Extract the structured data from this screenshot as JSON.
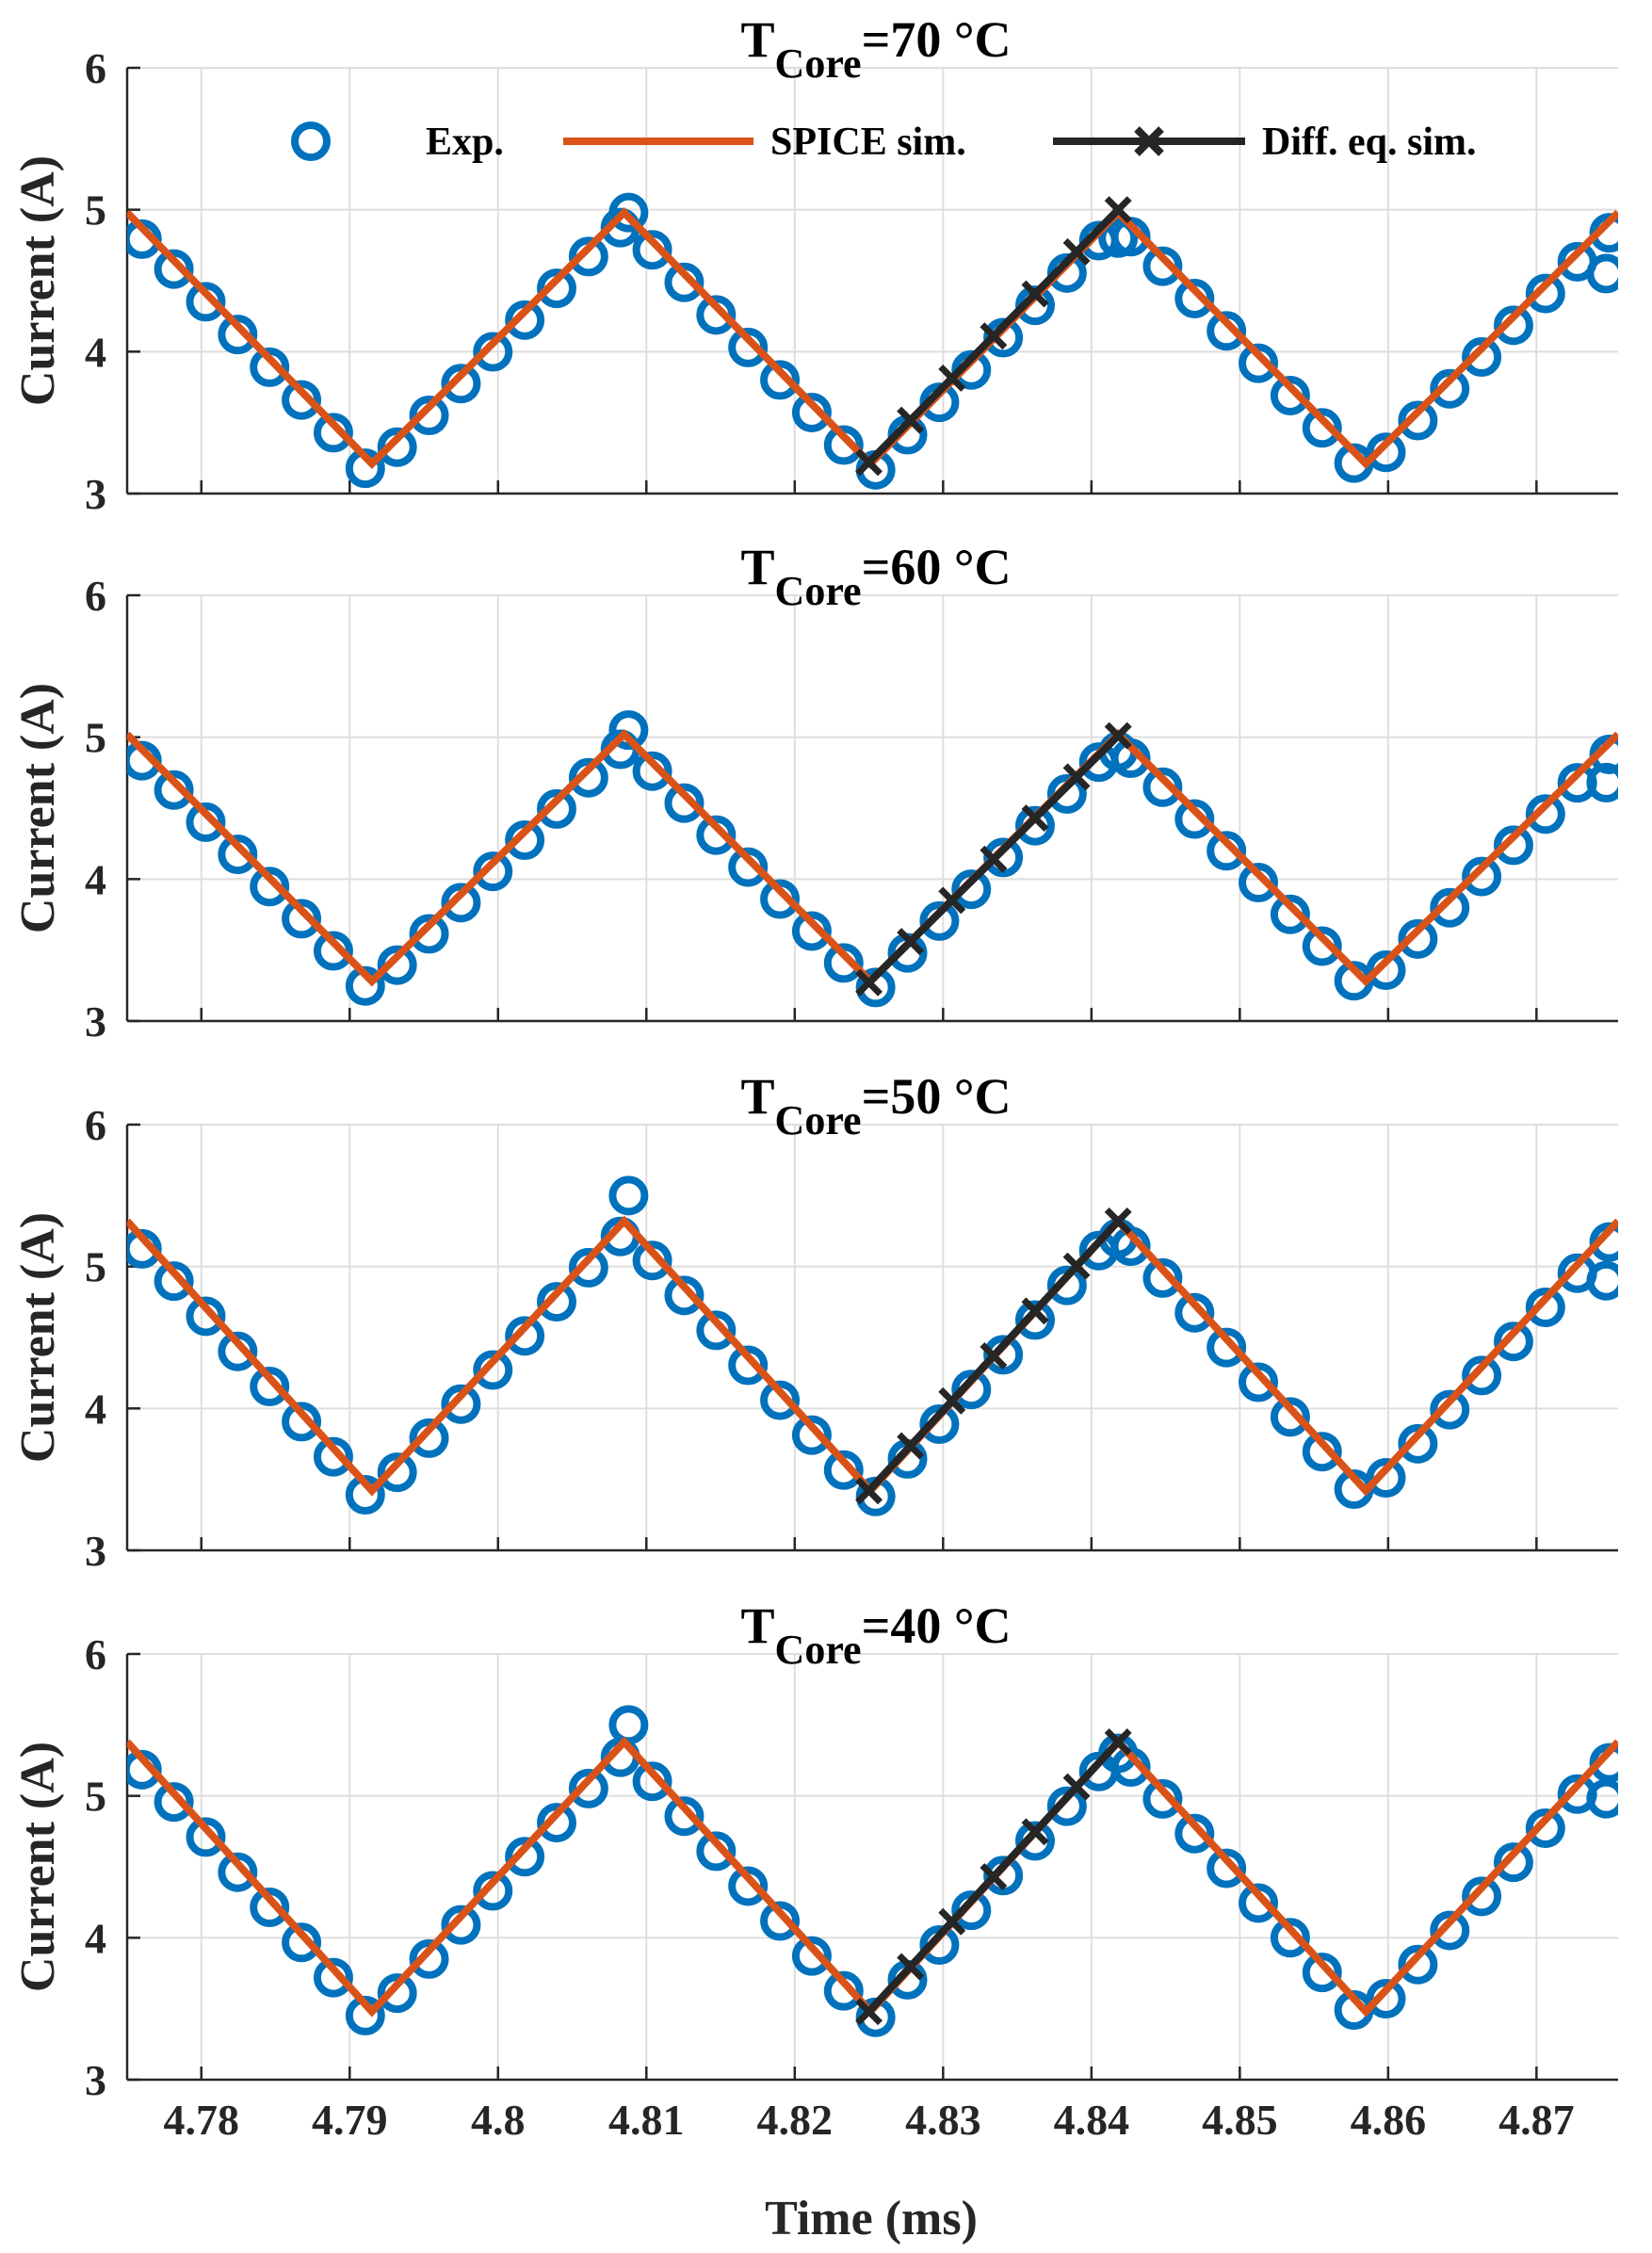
{
  "chart_data": {
    "type": "line",
    "xlabel": "Time (ms)",
    "ylabel": "Current (A)",
    "xlim": [
      4.775,
      4.8755
    ],
    "ylim": [
      3,
      6
    ],
    "xticks": [
      4.78,
      4.79,
      4.8,
      4.81,
      4.82,
      4.83,
      4.84,
      4.85,
      4.86,
      4.87
    ],
    "xtick_labels": [
      "4.78",
      "4.79",
      "4.8",
      "4.81",
      "4.82",
      "4.83",
      "4.84",
      "4.85",
      "4.86",
      "4.87"
    ],
    "yticks": [
      3,
      4,
      5,
      6
    ],
    "ytick_labels": [
      "3",
      "4",
      "5",
      "6"
    ],
    "grid": true,
    "legend": {
      "placement": "top",
      "entries": [
        {
          "label": "Exp.",
          "marker": "circle",
          "color": "#0072BD"
        },
        {
          "label": "SPICE sim.",
          "marker": "line",
          "color": "#D95319"
        },
        {
          "label": "Diff. eq. sim.",
          "marker": "x-line",
          "color": "#262626"
        }
      ]
    },
    "colors": {
      "exp": "#0072BD",
      "spice": "#D95319",
      "diff": "#262626",
      "grid": "#dedede",
      "axis": "#262626"
    },
    "panels": [
      {
        "title_main": "T",
        "title_sub": "Core",
        "title_suffix": "=70 °C",
        "spice": {
          "x": [
            4.775,
            4.7915,
            4.8085,
            4.8251,
            4.8418,
            4.8585,
            4.8755
          ],
          "y": [
            4.98,
            3.21,
            4.98,
            3.21,
            4.98,
            3.21,
            4.98
          ]
        },
        "diff": {
          "x": [
            4.825,
            4.8418
          ],
          "y": [
            3.22,
            5.0
          ]
        },
        "exp_peak": {
          "x": [
            4.8088,
            4.8418
          ],
          "y": [
            4.98,
            4.8
          ]
        },
        "exp_end": {
          "x": 4.8747,
          "y": 4.55
        }
      },
      {
        "title_main": "T",
        "title_sub": "Core",
        "title_suffix": "=60 °C",
        "spice": {
          "x": [
            4.775,
            4.7915,
            4.8085,
            4.8251,
            4.8418,
            4.8585,
            4.8755
          ],
          "y": [
            5.02,
            3.28,
            5.02,
            3.28,
            5.02,
            3.28,
            5.02
          ]
        },
        "diff": {
          "x": [
            4.825,
            4.8418
          ],
          "y": [
            3.27,
            5.01
          ]
        },
        "exp_peak": {
          "x": [
            4.8088,
            4.8418
          ],
          "y": [
            5.05,
            4.9
          ]
        },
        "exp_end": {
          "x": 4.8747,
          "y": 4.68
        }
      },
      {
        "title_main": "T",
        "title_sub": "Core",
        "title_suffix": "=50 °C",
        "spice": {
          "x": [
            4.775,
            4.7915,
            4.8085,
            4.8251,
            4.8418,
            4.8585,
            4.8755
          ],
          "y": [
            5.32,
            3.42,
            5.32,
            3.42,
            5.32,
            3.42,
            5.32
          ]
        },
        "diff": {
          "x": [
            4.825,
            4.8418
          ],
          "y": [
            3.42,
            5.32
          ]
        },
        "exp_peak": {
          "x": [
            4.8088,
            4.8418
          ],
          "y": [
            5.5,
            5.2
          ]
        },
        "exp_end": {
          "x": 4.8747,
          "y": 4.9
        }
      },
      {
        "title_main": "T",
        "title_sub": "Core",
        "title_suffix": "=40 °C",
        "spice": {
          "x": [
            4.775,
            4.7915,
            4.8085,
            4.8251,
            4.8418,
            4.8585,
            4.8755
          ],
          "y": [
            5.38,
            3.48,
            5.38,
            3.48,
            5.38,
            3.48,
            5.38
          ]
        },
        "diff": {
          "x": [
            4.825,
            4.8418
          ],
          "y": [
            3.48,
            5.38
          ]
        },
        "exp_peak": {
          "x": [
            4.8088,
            4.8418
          ],
          "y": [
            5.5,
            5.3
          ]
        },
        "exp_end": {
          "x": 4.8747,
          "y": 4.98
        }
      }
    ]
  }
}
